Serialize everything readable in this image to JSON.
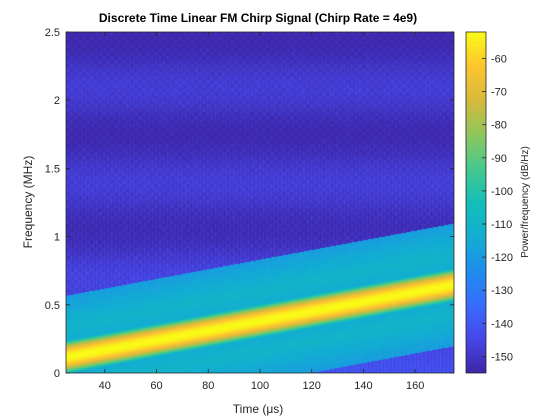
{
  "chart_data": {
    "type": "heatmap",
    "title": "Discrete Time Linear FM Chirp Signal (Chirp Rate = 4e9)",
    "xlabel": "Time (μs)",
    "ylabel": "Frequency (MHz)",
    "colorbar_label": "Power/frequency (dB/Hz)",
    "xlim": [
      25,
      175
    ],
    "ylim": [
      0,
      2.5
    ],
    "clim": [
      -155,
      -52
    ],
    "x_ticks": [
      40,
      60,
      80,
      100,
      120,
      140,
      160
    ],
    "x_tick_labels": [
      "40",
      "60",
      "80",
      "100",
      "120",
      "140",
      "160"
    ],
    "y_ticks": [
      0,
      0.5,
      1,
      1.5,
      2,
      2.5
    ],
    "y_tick_labels": [
      "0",
      "0.5",
      "1",
      "1.5",
      "2",
      "2.5"
    ],
    "colorbar_ticks": [
      -60,
      -70,
      -80,
      -90,
      -100,
      -110,
      -120,
      -130,
      -140,
      -150
    ],
    "colorbar_tick_labels": [
      "-60",
      "-70",
      "-80",
      "-90",
      "-100",
      "-110",
      "-120",
      "-130",
      "-140",
      "-150"
    ],
    "colormap": "parula",
    "ridge": {
      "start": [
        25,
        0.12
      ],
      "end": [
        175,
        0.65
      ],
      "peak_db": -52
    },
    "background_db": -150
  }
}
